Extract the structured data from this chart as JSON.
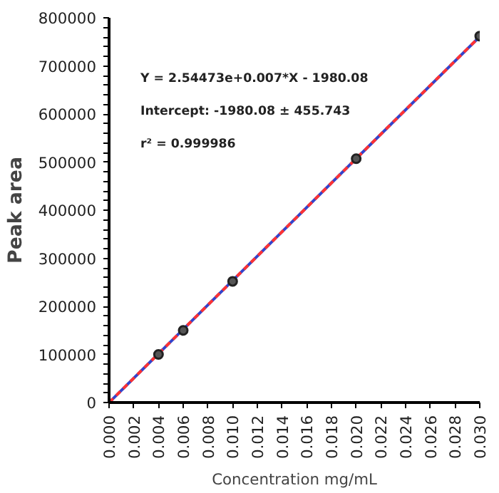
{
  "chart_data": {
    "type": "scatter",
    "xlabel": "Concentration mg/mL",
    "ylabel": "Peak area",
    "annotations": [
      "Y = 2.54473e+0.007*X - 1980.08",
      "Intercept: -1980.08 ± 455.743",
      "r² = 0.999986"
    ],
    "series": [
      {
        "type": "line",
        "color": "#3344cc",
        "line_style": "solid",
        "x": [
          0.0,
          0.03
        ],
        "values": [
          0,
          761000
        ]
      },
      {
        "type": "line",
        "color": "#ff3333",
        "line_style": "dashed",
        "x": [
          0.0,
          0.03
        ],
        "values": [
          0,
          761000
        ]
      },
      {
        "color": "#222222",
        "marker": "circle",
        "x": [
          0.004,
          0.006,
          0.01,
          0.02,
          0.03
        ],
        "values": [
          100000,
          150000,
          252000,
          507000,
          762000
        ]
      }
    ],
    "xlim": [
      0,
      0.03
    ],
    "ylim": [
      0,
      800000
    ],
    "xticks": [
      {
        "value": 0,
        "label": "0.000"
      },
      {
        "value": 0.002,
        "label": "0.002"
      },
      {
        "value": 0.004,
        "label": "0.004"
      },
      {
        "value": 0.006,
        "label": "0.006"
      },
      {
        "value": 0.008,
        "label": "0.008"
      },
      {
        "value": 0.01,
        "label": "0.010"
      },
      {
        "value": 0.012,
        "label": "0.012"
      },
      {
        "value": 0.014,
        "label": "0.014"
      },
      {
        "value": 0.016,
        "label": "0.016"
      },
      {
        "value": 0.018,
        "label": "0.018"
      },
      {
        "value": 0.02,
        "label": "0.020"
      },
      {
        "value": 0.022,
        "label": "0.022"
      },
      {
        "value": 0.024,
        "label": "0.024"
      },
      {
        "value": 0.026,
        "label": "0.026"
      },
      {
        "value": 0.028,
        "label": "0.028"
      },
      {
        "value": 0.03,
        "label": "0.030"
      }
    ],
    "yticks": [
      0,
      100000,
      200000,
      300000,
      400000,
      500000,
      600000,
      700000,
      800000
    ],
    "grid": false
  }
}
